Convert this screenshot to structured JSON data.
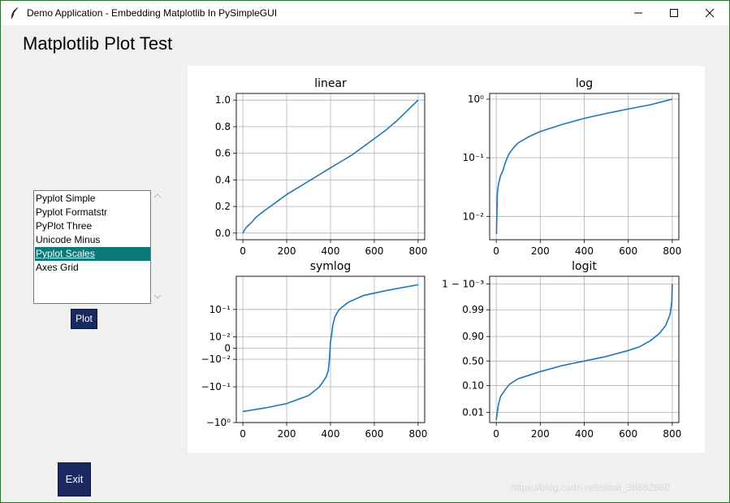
{
  "window": {
    "title": "Demo Application - Embedding Matplotlib In PySimpleGUI",
    "icons": [
      "feather-icon",
      "minimize-icon",
      "maximize-icon",
      "close-icon"
    ]
  },
  "header": {
    "title": "Matplotlib Plot Test"
  },
  "listbox": {
    "items": [
      "Pyplot Simple",
      "Pyplot Formatstr",
      "PyPlot Three",
      "Unicode Minus",
      "Pyplot Scales",
      "Axes Grid"
    ],
    "selected": "Pyplot Scales"
  },
  "buttons": {
    "plot": "Plot",
    "exit": "Exit"
  },
  "watermark": "https://blog.csdn.net/sinat_38682860",
  "colors": {
    "line": "#1f77b4",
    "selection": "#0a7a78",
    "button": "#1a2a60",
    "grid": "#b0b0b0"
  },
  "chart_data": [
    {
      "type": "line",
      "title": "linear",
      "scale": "linear",
      "xlim": [
        -30,
        830
      ],
      "ylim": [
        -0.05,
        1.05
      ],
      "grid": true,
      "xticks": [
        0,
        200,
        400,
        600,
        800
      ],
      "xtick_labels": [
        "0",
        "200",
        "400",
        "600",
        "800"
      ],
      "yticks": [
        0,
        0.2,
        0.4,
        0.6,
        0.8,
        1.0
      ],
      "ytick_labels": [
        "0.0",
        "0.2",
        "0.4",
        "0.6",
        "0.8",
        "1.0"
      ],
      "x": [
        0,
        10,
        20,
        40,
        60,
        100,
        150,
        200,
        250,
        300,
        350,
        400,
        450,
        500,
        550,
        600,
        650,
        700,
        750,
        800
      ],
      "y": [
        0.0,
        0.03,
        0.05,
        0.08,
        0.12,
        0.17,
        0.23,
        0.29,
        0.34,
        0.39,
        0.44,
        0.49,
        0.54,
        0.59,
        0.65,
        0.71,
        0.77,
        0.84,
        0.92,
        1.0
      ]
    },
    {
      "type": "line",
      "title": "log",
      "scale": "log",
      "xlim": [
        -30,
        830
      ],
      "ylim": [
        0.004,
        1.25
      ],
      "grid": true,
      "xticks": [
        0,
        200,
        400,
        600,
        800
      ],
      "xtick_labels": [
        "0",
        "200",
        "400",
        "600",
        "800"
      ],
      "yticks": [
        0.01,
        0.1,
        1
      ],
      "ytick_labels": [
        "10⁻²",
        "10⁻¹",
        "10⁰"
      ],
      "x": [
        1,
        5,
        10,
        20,
        30,
        40,
        50,
        60,
        80,
        100,
        150,
        200,
        300,
        400,
        500,
        600,
        700,
        800
      ],
      "y": [
        0.005,
        0.025,
        0.035,
        0.05,
        0.06,
        0.08,
        0.1,
        0.12,
        0.15,
        0.18,
        0.23,
        0.28,
        0.37,
        0.47,
        0.57,
        0.68,
        0.8,
        1.0
      ]
    },
    {
      "type": "line",
      "title": "symlog",
      "scale": "symlog",
      "xlim": [
        -30,
        830
      ],
      "ylim": [
        -1.0,
        0.85
      ],
      "grid": true,
      "xticks": [
        0,
        200,
        400,
        600,
        800
      ],
      "xtick_labels": [
        "0",
        "200",
        "400",
        "600",
        "800"
      ],
      "yticks": [
        -1,
        -0.1,
        -0.01,
        0,
        0.01,
        0.1
      ],
      "ytick_labels": [
        "−10⁰",
        "−10⁻¹",
        "−10⁻²",
        "0",
        "10⁻²",
        "10⁻¹"
      ],
      "x": [
        0,
        100,
        200,
        300,
        350,
        380,
        390,
        395,
        400,
        405,
        410,
        420,
        440,
        480,
        550,
        650,
        800
      ],
      "y": [
        -0.5,
        -0.4,
        -0.3,
        -0.18,
        -0.1,
        -0.05,
        -0.03,
        -0.01,
        0.005,
        0.012,
        0.03,
        0.06,
        0.1,
        0.16,
        0.25,
        0.34,
        0.5
      ]
    },
    {
      "type": "line",
      "title": "logit",
      "scale": "logit",
      "xlim": [
        -30,
        830
      ],
      "ylim": [
        0.004,
        0.9995
      ],
      "grid": true,
      "xticks": [
        0,
        200,
        400,
        600,
        800
      ],
      "xtick_labels": [
        "0",
        "200",
        "400",
        "600",
        "800"
      ],
      "yticks": [
        0.01,
        0.1,
        0.5,
        0.9,
        0.99,
        0.999
      ],
      "ytick_labels": [
        "0.01",
        "0.10",
        "0.50",
        "0.90",
        "0.99",
        "1 − 10⁻³"
      ],
      "x": [
        0,
        10,
        20,
        40,
        60,
        100,
        150,
        200,
        300,
        400,
        500,
        600,
        650,
        700,
        740,
        770,
        790,
        798,
        800
      ],
      "y": [
        0.005,
        0.02,
        0.04,
        0.07,
        0.11,
        0.17,
        0.22,
        0.28,
        0.4,
        0.5,
        0.6,
        0.72,
        0.78,
        0.86,
        0.92,
        0.96,
        0.985,
        0.995,
        0.999
      ]
    }
  ]
}
